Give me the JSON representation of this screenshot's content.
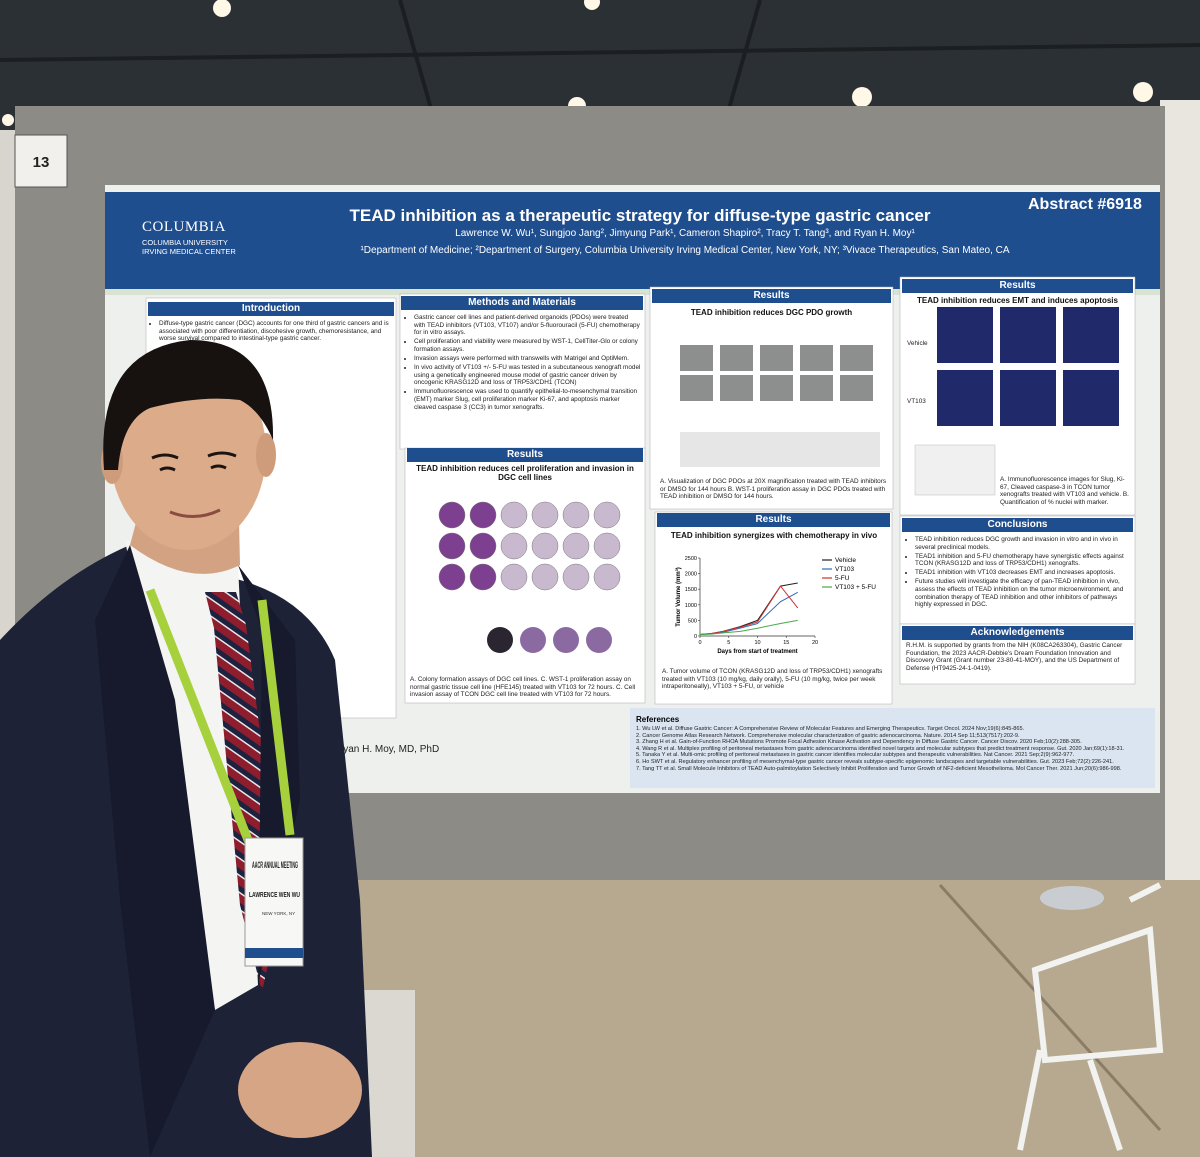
{
  "booth_number": "13",
  "badge": {
    "event": "AACR ANNUAL MEETING",
    "name": "LAWRENCE WEN WU",
    "location": "NEW YORK, NY"
  },
  "poster": {
    "logo": "COLUMBIA",
    "logo_sub": [
      "COLUMBIA UNIVERSITY",
      "IRVING MEDICAL CENTER"
    ],
    "title": "TEAD inhibition as a therapeutic strategy for diffuse-type gastric cancer",
    "abstract": "Abstract #6918",
    "authors": "Lawrence W. Wu¹, Sungjoo Jang², Jimyung Park¹, Cameron Shapiro², Tracy T. Tang³, and Ryan H. Moy¹",
    "affiliations": "¹Department of Medicine; ²Department of Surgery, Columbia University Irving Medical Center, New York, NY; ³Vivace Therapeutics, San Mateo, CA",
    "introduction": {
      "heading": "Introduction",
      "bullets": [
        "Diffuse-type gastric cancer (DGC) accounts for one third of gastric cancers and is associated with poor differentiation, discohesive growth, chemoresistance, and worse survival compared to intestinal-type gastric cancer."
      ]
    },
    "methods": {
      "heading": "Methods and Materials",
      "bullets": [
        "Gastric cancer cell lines and patient-derived organoids (PDOs) were treated with TEAD inhibitors (VT103, VT107) and/or 5-fluorouracil (5-FU) chemotherapy for in vitro assays.",
        "Cell proliferation and viability were measured by WST-1, CellTiter-Glo or colony formation assays.",
        "Invasion assays were performed with transwells with Matrigel and OptiMem.",
        "In vivo activity of VT103 +/- 5-FU was tested in a subcutaneous xenograft model using a genetically engineered mouse model of gastric cancer driven by oncogenic KRASG12D and loss of TRP53/CDH1 (TCON)",
        "Immunofluorescence was used to quantify epithelial-to-mesenchymal transition (EMT) marker Slug, cell proliferation marker Ki-67, and apoptosis marker cleaved caspase 3 (CC3) in tumor xenografts."
      ]
    },
    "results_lines": {
      "heading": "Results",
      "subtitle": "TEAD inhibition reduces cell proliferation and invasion in DGC cell lines",
      "caption": "A. Colony formation assays of DGC cell lines. C. WST-1 proliferation assay on normal gastric tissue cell line (HFE145) treated with VT103 for 72 hours. C. Cell invasion assay of TCON DGC cell line treated with VT103 for 72 hours."
    },
    "results_pdo": {
      "heading": "Results",
      "subtitle": "TEAD inhibition reduces DGC PDO growth",
      "caption": "A. Visualization of DGC PDOs at 20X magnification treated with TEAD inhibitors or DMSO for 144 hours B. WST-1 proliferation assay in DGC PDOs treated with TEAD inhibition or DMSO for 144 hours."
    },
    "results_vivo": {
      "heading": "Results",
      "subtitle": "TEAD inhibition synergizes with chemotherapy in vivo",
      "caption": "A. Tumor volume of TCON (KRASG12D and loss of TRP53/CDH1) xenografts treated with VT103 (10 mg/kg, daily orally), 5-FU (10 mg/kg, twice per week intraperitoneally), VT103 + 5-FU, or vehicle",
      "chart": {
        "type": "line",
        "xlabel": "Days from start of treatment",
        "ylabel": "Tumor Volume (mm³)",
        "x": [
          0,
          2,
          4,
          7,
          10,
          14,
          17
        ],
        "xlim": [
          0,
          20
        ],
        "xticks": [
          0,
          5,
          10,
          15,
          20
        ],
        "ylim": [
          0,
          2500
        ],
        "yticks": [
          0,
          500,
          1000,
          1500,
          2000,
          2500
        ],
        "series": [
          {
            "name": "Vehicle",
            "color": "#222222",
            "values": [
              50,
              80,
              150,
              300,
              500,
              1600,
              1700
            ]
          },
          {
            "name": "VT103",
            "color": "#2e6db4",
            "values": [
              50,
              70,
              120,
              250,
              400,
              1100,
              1400
            ]
          },
          {
            "name": "5-FU",
            "color": "#d0302f",
            "values": [
              50,
              80,
              150,
              280,
              450,
              1600,
              900
            ]
          },
          {
            "name": "VT103 + 5-FU",
            "color": "#4aa84a",
            "values": [
              50,
              60,
              100,
              150,
              250,
              400,
              500
            ]
          }
        ]
      }
    },
    "results_emt": {
      "heading": "Results",
      "subtitle": "TEAD inhibition reduces EMT and induces apoptosis",
      "rows": [
        "Vehicle",
        "VT103"
      ],
      "caption": "A. Immunofluorescence images for Slug, Ki-67, Cleaved caspase-3 in TCON tumor xenografts treated with VT103 and vehicle. B. Quantification of % nuclei with marker."
    },
    "conclusions": {
      "heading": "Conclusions",
      "bullets": [
        "TEAD inhibition reduces DGC growth and invasion in vitro and in vivo in several preclinical models.",
        "TEAD1 inhibition and 5-FU chemotherapy have synergistic effects against TCON (KRASG12D and loss of TRP53/CDH1) xenografts.",
        "TEAD1 inhibition with VT103 decreases EMT and increases apoptosis.",
        "Future studies will investigate the efficacy of pan-TEAD inhibition in vivo, assess the effects of TEAD inhibition on the tumor microenvironment, and combination therapy of TEAD inhibition and other inhibitors of pathways highly expressed in DGC."
      ]
    },
    "acknowledgements": {
      "heading": "Acknowledgements",
      "text": "R.H.M. is supported by grants from the NIH (K08CA263304), Gastric Cancer Foundation, the 2023 AACR-Debbie's Dream Foundation Innovation and Discovery Grant (Grant number 23-80-41-MOY), and the US Department of Defense (HT9425-24-1-0419)."
    },
    "references": {
      "heading": "References",
      "items": [
        "1. Wu LW et al. Diffuse Gastric Cancer: A Comprehensive Review of Molecular Features and Emerging Therapeutics. Target Oncol. 2024 Nov;19(6):845-865.",
        "2. Cancer Genome Atlas Research Network. Comprehensive molecular characterization of gastric adenocarcinoma. Nature. 2014 Sep 11;513(7517):202-9.",
        "3. Zhang H et al. Gain-of-Function RHOA Mutations Promote Focal Adhesion Kinase Activation and Dependency in Diffuse Gastric Cancer. Cancer Discov. 2020 Feb;10(2):288-305.",
        "4. Wang R et al. Multiplex profiling of peritoneal metastases from gastric adenocarcinoma identified novel targets and molecular subtypes that predict treatment response. Gut. 2020 Jan;69(1):18-31.",
        "5. Tanaka Y et al. Multi-omic profiling of peritoneal metastases in gastric cancer identifies molecular subtypes and therapeutic vulnerabilities. Nat Cancer. 2021 Sep;2(9):962-977.",
        "6. Ho SWT et al. Regulatory enhancer profiling of mesenchymal-type gastric cancer reveals subtype-specific epigenomic landscapes and targetable vulnerabilities. Gut. 2023 Feb;72(2):226-241.",
        "7. Tang TT et al. Small Molecule Inhibitors of TEAD Auto-palmitoylation Selectively Inhibit Proliferation and Tumor Growth of NF2-deficient Mesothelioma. Mol Cancer Ther. 2021 Jun;20(6):986-998."
      ]
    },
    "contact": "Ryan H. Moy, MD, PhD"
  }
}
